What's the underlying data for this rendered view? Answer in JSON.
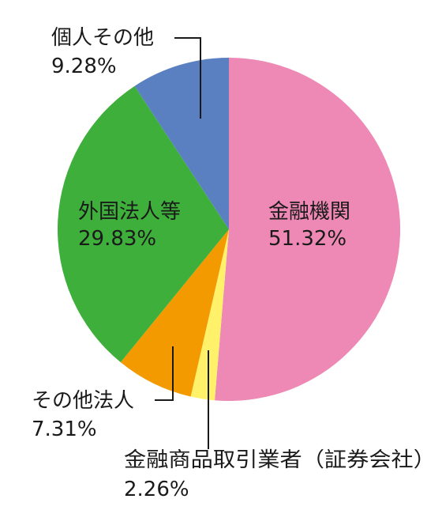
{
  "chart_data": {
    "type": "pie",
    "title": "",
    "start_angle_deg": 0,
    "direction": "clockwise",
    "slices": [
      {
        "label": "金融機関",
        "value": 51.32,
        "value_label": "51.32%",
        "color": "#EE88B4"
      },
      {
        "label": "金融商品取引業者（証券会社）",
        "value": 2.26,
        "value_label": "2.26%",
        "color": "#FFF26A"
      },
      {
        "label": "その他法人",
        "value": 7.31,
        "value_label": "7.31%",
        "color": "#F39A00"
      },
      {
        "label": "外国法人等",
        "value": 29.83,
        "value_label": "29.83%",
        "color": "#3DAF3A"
      },
      {
        "label": "個人その他",
        "value": 9.28,
        "value_label": "9.28%",
        "color": "#5B80C2"
      }
    ]
  }
}
